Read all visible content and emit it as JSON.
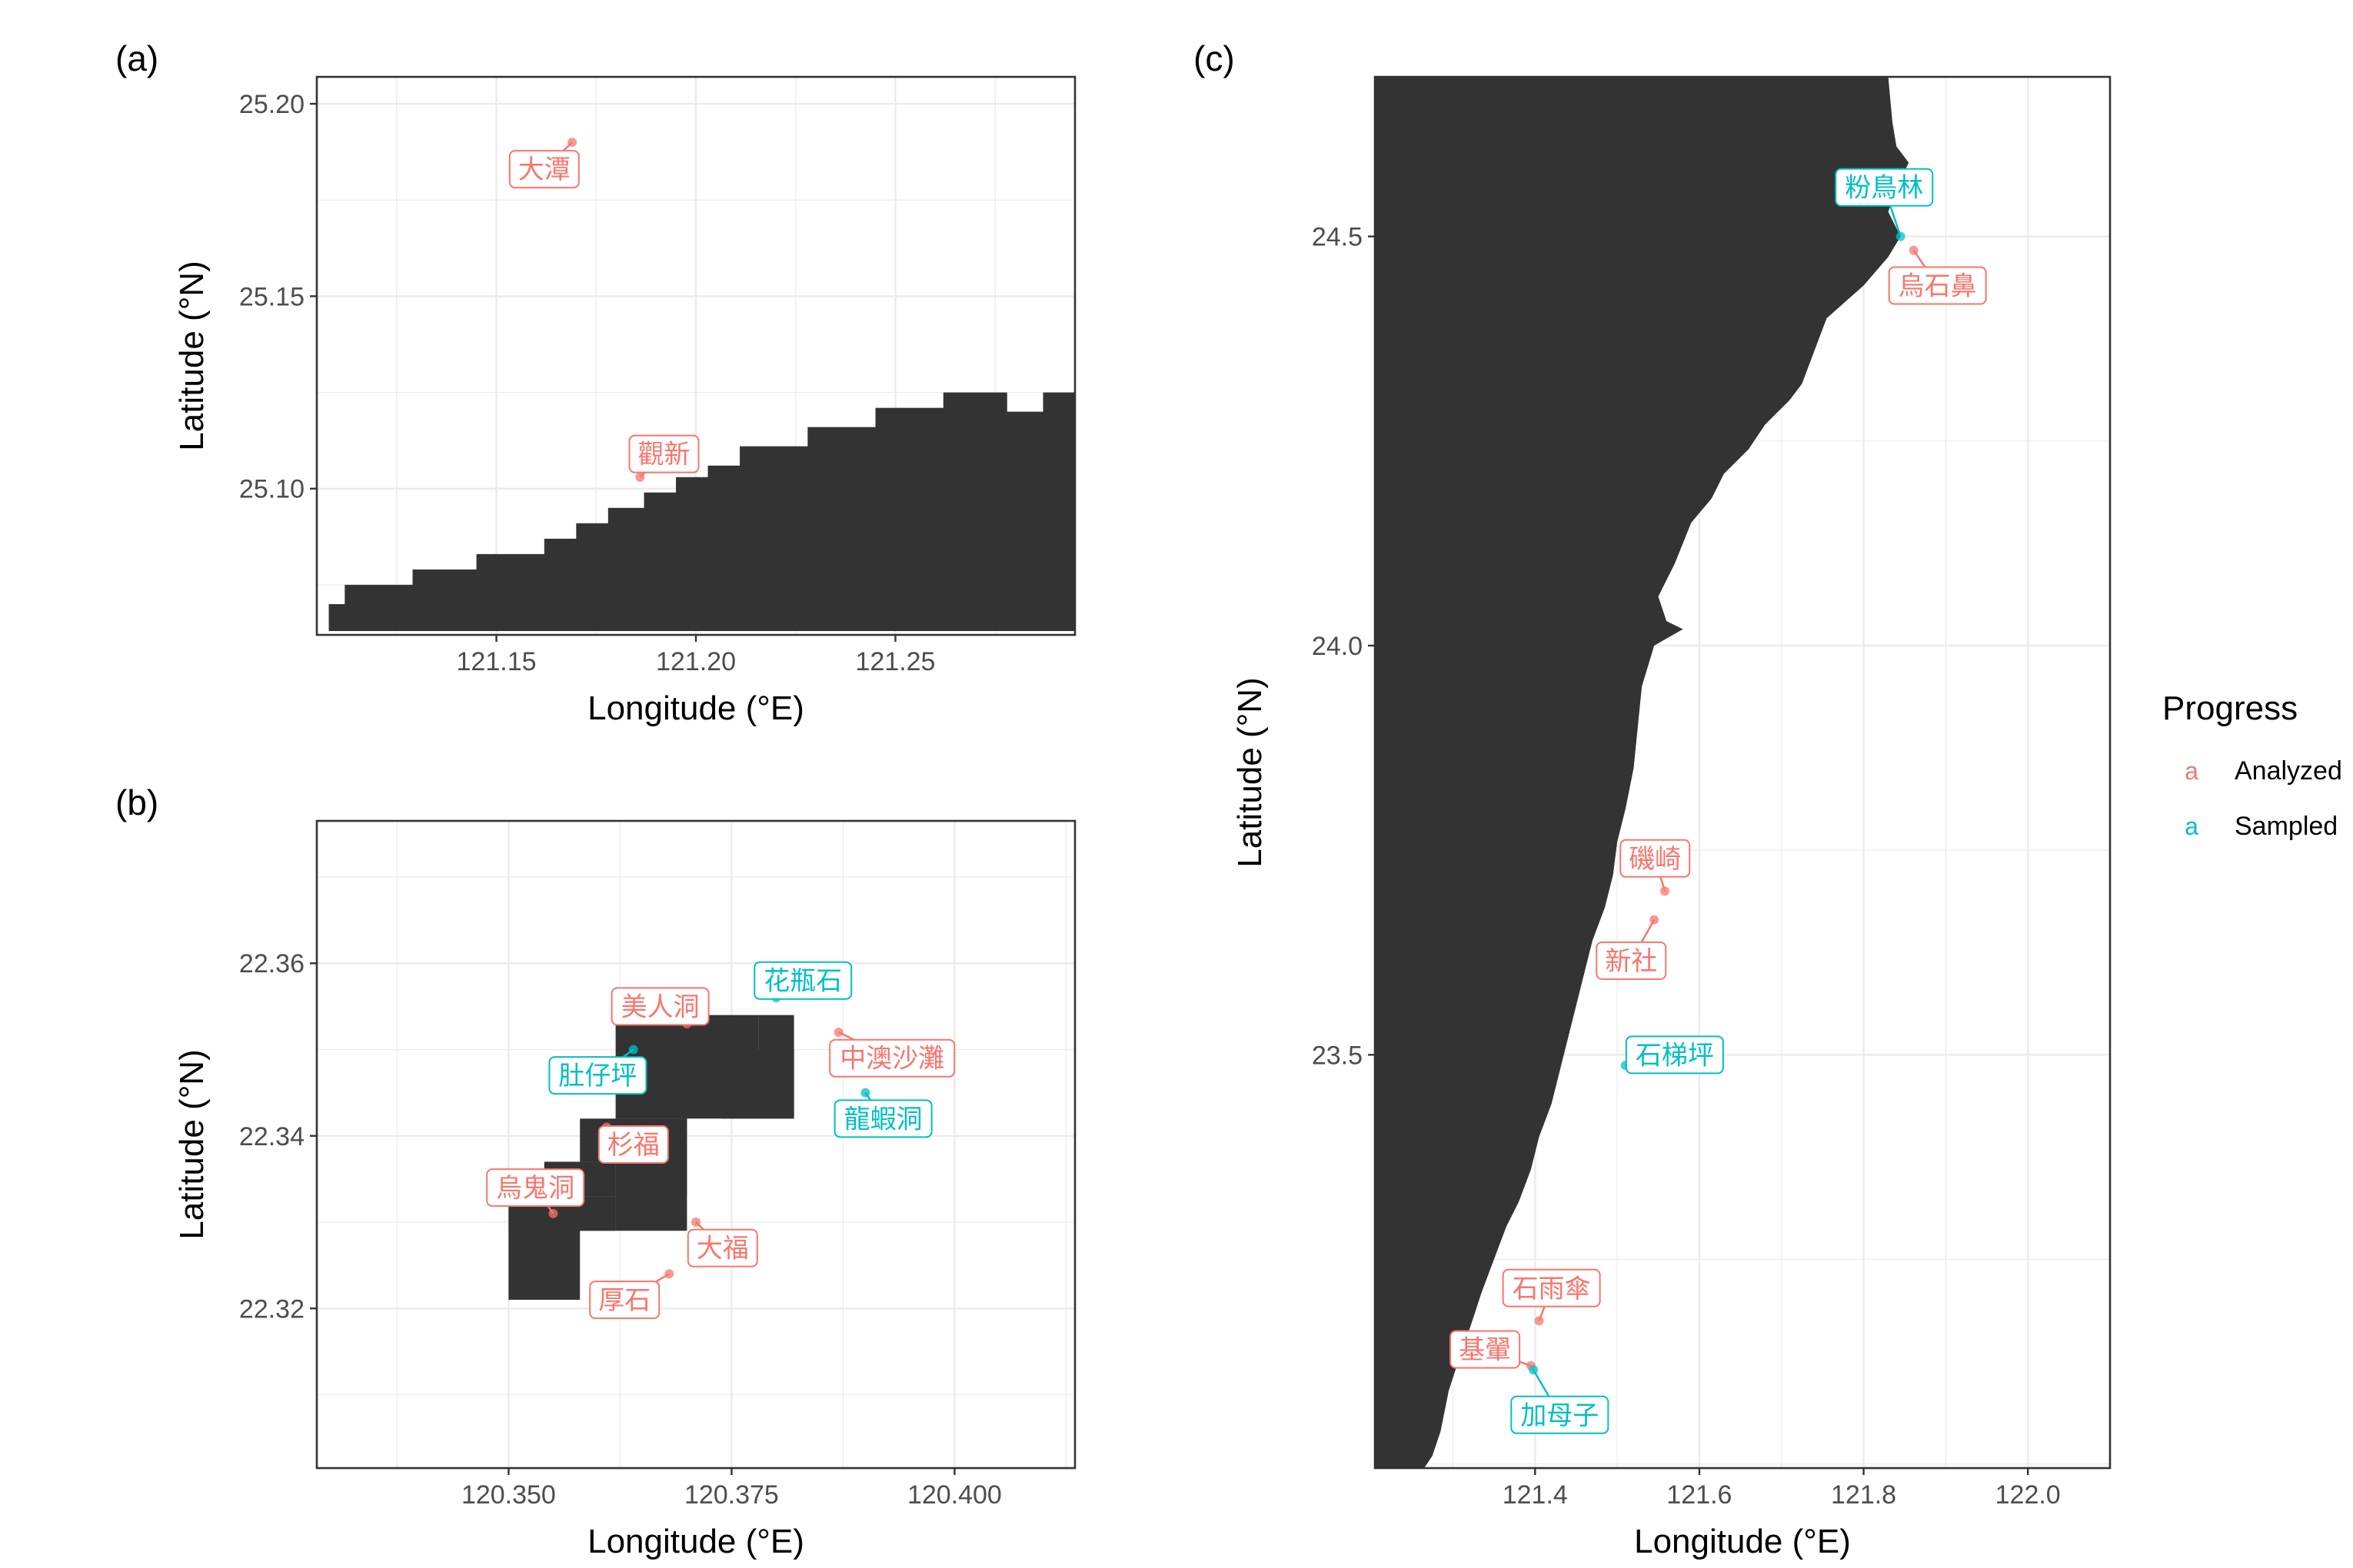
{
  "colors": {
    "Analyzed": "#F8766D",
    "Sampled": "#00BFC4",
    "land": "#333333",
    "grid": "#EBEBEB"
  },
  "legend": {
    "title": "Progress",
    "key_glyph": "a",
    "items": [
      {
        "label": "Analyzed"
      },
      {
        "label": "Sampled"
      }
    ]
  },
  "chart_data": [
    {
      "type": "scatter",
      "panel_label": "(a)",
      "xlabel": "Longitude (°E)",
      "ylabel": "Latitude (°N)",
      "xlim": [
        121.105,
        121.295
      ],
      "ylim": [
        25.062,
        25.207
      ],
      "xticks": [
        121.15,
        121.2,
        121.25
      ],
      "yticks": [
        25.1,
        25.15,
        25.2
      ],
      "xtick_labels": [
        "121.15",
        "121.20",
        "121.25"
      ],
      "ytick_labels": [
        "25.10",
        "25.15",
        "25.20"
      ],
      "grid": true,
      "land_staircase": [
        [
          121.108,
          25.07
        ],
        [
          121.112,
          25.075
        ],
        [
          121.129,
          25.079
        ],
        [
          121.145,
          25.083
        ],
        [
          121.162,
          25.087
        ],
        [
          121.17,
          25.091
        ],
        [
          121.178,
          25.095
        ],
        [
          121.187,
          25.099
        ],
        [
          121.195,
          25.103
        ],
        [
          121.203,
          25.106
        ],
        [
          121.211,
          25.111
        ],
        [
          121.228,
          25.116
        ],
        [
          121.245,
          25.121
        ],
        [
          121.262,
          25.125
        ],
        [
          121.278,
          25.12
        ],
        [
          121.287,
          25.125
        ],
        [
          121.295,
          25.125
        ]
      ],
      "land_bottom": 25.063,
      "points": [
        {
          "label": "大潭",
          "x": 121.169,
          "y": 25.19,
          "status": "Analyzed",
          "lx": 121.162,
          "ly": 25.183
        },
        {
          "label": "觀新",
          "x": 121.186,
          "y": 25.103,
          "status": "Analyzed",
          "lx": 121.192,
          "ly": 25.109
        }
      ]
    },
    {
      "type": "scatter",
      "panel_label": "(b)",
      "xlabel": "Longitude (°E)",
      "ylabel": "Latitude (°N)",
      "xlim": [
        120.3285,
        120.4135
      ],
      "ylim": [
        22.3015,
        22.3765
      ],
      "xticks": [
        120.35,
        120.375,
        120.4
      ],
      "yticks": [
        22.32,
        22.34,
        22.36
      ],
      "xtick_labels": [
        "120.350",
        "120.375",
        "120.400"
      ],
      "ytick_labels": [
        "22.32",
        "22.34",
        "22.36"
      ],
      "grid": true,
      "land_cells": [
        [
          120.35,
          22.321,
          120.358,
          22.333
        ],
        [
          120.35,
          22.329,
          120.362,
          22.333
        ],
        [
          120.354,
          22.333,
          120.362,
          22.337
        ],
        [
          120.358,
          22.329,
          120.362,
          22.333
        ],
        [
          120.358,
          22.337,
          120.37,
          22.342
        ],
        [
          120.362,
          22.329,
          120.37,
          22.342
        ],
        [
          120.366,
          22.333,
          120.37,
          22.337
        ],
        [
          120.362,
          22.342,
          120.378,
          22.35
        ],
        [
          120.366,
          22.35,
          120.378,
          22.354
        ],
        [
          120.374,
          22.342,
          120.382,
          22.35
        ],
        [
          120.378,
          22.342,
          120.382,
          22.354
        ],
        [
          120.362,
          22.35,
          120.366,
          22.354
        ]
      ],
      "points": [
        {
          "label": "花瓶石",
          "x": 120.38,
          "y": 22.356,
          "status": "Sampled",
          "lx": 120.383,
          "ly": 22.358
        },
        {
          "label": "美人洞",
          "x": 120.37,
          "y": 22.353,
          "status": "Analyzed",
          "lx": 120.367,
          "ly": 22.355
        },
        {
          "label": "中澳沙灘",
          "x": 120.387,
          "y": 22.352,
          "status": "Analyzed",
          "lx": 120.393,
          "ly": 22.349
        },
        {
          "label": "肚仔坪",
          "x": 120.364,
          "y": 22.35,
          "status": "Sampled",
          "lx": 120.36,
          "ly": 22.347
        },
        {
          "label": "龍蝦洞",
          "x": 120.39,
          "y": 22.345,
          "status": "Sampled",
          "lx": 120.392,
          "ly": 22.342
        },
        {
          "label": "杉福",
          "x": 120.361,
          "y": 22.341,
          "status": "Analyzed",
          "lx": 120.364,
          "ly": 22.339
        },
        {
          "label": "烏鬼洞",
          "x": 120.355,
          "y": 22.331,
          "status": "Analyzed",
          "lx": 120.353,
          "ly": 22.334
        },
        {
          "label": "大福",
          "x": 120.371,
          "y": 22.33,
          "status": "Analyzed",
          "lx": 120.374,
          "ly": 22.327
        },
        {
          "label": "厚石",
          "x": 120.368,
          "y": 22.324,
          "status": "Analyzed",
          "lx": 120.363,
          "ly": 22.321
        }
      ]
    },
    {
      "type": "scatter",
      "panel_label": "(c)",
      "xlabel": "Longitude (°E)",
      "ylabel": "Latitude (°N)",
      "xlim": [
        121.205,
        122.1
      ],
      "ylim": [
        22.995,
        24.695
      ],
      "xticks": [
        121.4,
        121.6,
        121.8,
        122.0
      ],
      "yticks": [
        23.5,
        24.0,
        24.5
      ],
      "xtick_labels": [
        "121.4",
        "121.6",
        "121.8",
        "122.0"
      ],
      "ytick_labels": [
        "23.5",
        "24.0",
        "24.5"
      ],
      "grid": true,
      "coastline": [
        [
          121.83,
          24.695
        ],
        [
          121.835,
          24.64
        ],
        [
          121.84,
          24.61
        ],
        [
          121.855,
          24.59
        ],
        [
          121.84,
          24.56
        ],
        [
          121.83,
          24.53
        ],
        [
          121.845,
          24.5
        ],
        [
          121.83,
          24.475
        ],
        [
          121.8,
          24.44
        ],
        [
          121.755,
          24.4
        ],
        [
          121.74,
          24.36
        ],
        [
          121.725,
          24.32
        ],
        [
          121.71,
          24.3
        ],
        [
          121.68,
          24.27
        ],
        [
          121.66,
          24.24
        ],
        [
          121.63,
          24.21
        ],
        [
          121.615,
          24.18
        ],
        [
          121.59,
          24.15
        ],
        [
          121.57,
          24.1
        ],
        [
          121.55,
          24.06
        ],
        [
          121.56,
          24.03
        ],
        [
          121.58,
          24.02
        ],
        [
          121.545,
          24.0
        ],
        [
          121.53,
          23.95
        ],
        [
          121.525,
          23.9
        ],
        [
          121.52,
          23.85
        ],
        [
          121.51,
          23.8
        ],
        [
          121.5,
          23.76
        ],
        [
          121.495,
          23.72
        ],
        [
          121.485,
          23.68
        ],
        [
          121.47,
          23.64
        ],
        [
          121.46,
          23.6
        ],
        [
          121.45,
          23.56
        ],
        [
          121.44,
          23.52
        ],
        [
          121.43,
          23.48
        ],
        [
          121.42,
          23.44
        ],
        [
          121.405,
          23.4
        ],
        [
          121.395,
          23.36
        ],
        [
          121.38,
          23.32
        ],
        [
          121.365,
          23.29
        ],
        [
          121.35,
          23.25
        ],
        [
          121.335,
          23.21
        ],
        [
          121.322,
          23.17
        ],
        [
          121.308,
          23.13
        ],
        [
          121.295,
          23.09
        ],
        [
          121.285,
          23.04
        ],
        [
          121.275,
          23.01
        ],
        [
          121.265,
          22.995
        ]
      ],
      "points": [
        {
          "label": "粉鳥林",
          "x": 121.845,
          "y": 24.5,
          "status": "Sampled",
          "lx": 121.825,
          "ly": 24.56
        },
        {
          "label": "烏石鼻",
          "x": 121.861,
          "y": 24.483,
          "status": "Analyzed",
          "lx": 121.89,
          "ly": 24.44
        },
        {
          "label": "磯崎",
          "x": 121.558,
          "y": 23.7,
          "status": "Analyzed",
          "lx": 121.546,
          "ly": 23.74
        },
        {
          "label": "新社",
          "x": 121.545,
          "y": 23.665,
          "status": "Analyzed",
          "lx": 121.517,
          "ly": 23.615
        },
        {
          "label": "石梯坪",
          "x": 121.51,
          "y": 23.487,
          "status": "Sampled",
          "lx": 121.57,
          "ly": 23.5
        },
        {
          "label": "石雨傘",
          "x": 121.405,
          "y": 23.175,
          "status": "Analyzed",
          "lx": 121.42,
          "ly": 23.215
        },
        {
          "label": "基翬",
          "x": 121.395,
          "y": 23.12,
          "status": "Analyzed",
          "lx": 121.339,
          "ly": 23.14
        },
        {
          "label": "加母子",
          "x": 121.398,
          "y": 23.115,
          "status": "Sampled",
          "lx": 121.43,
          "ly": 23.06
        }
      ]
    }
  ]
}
